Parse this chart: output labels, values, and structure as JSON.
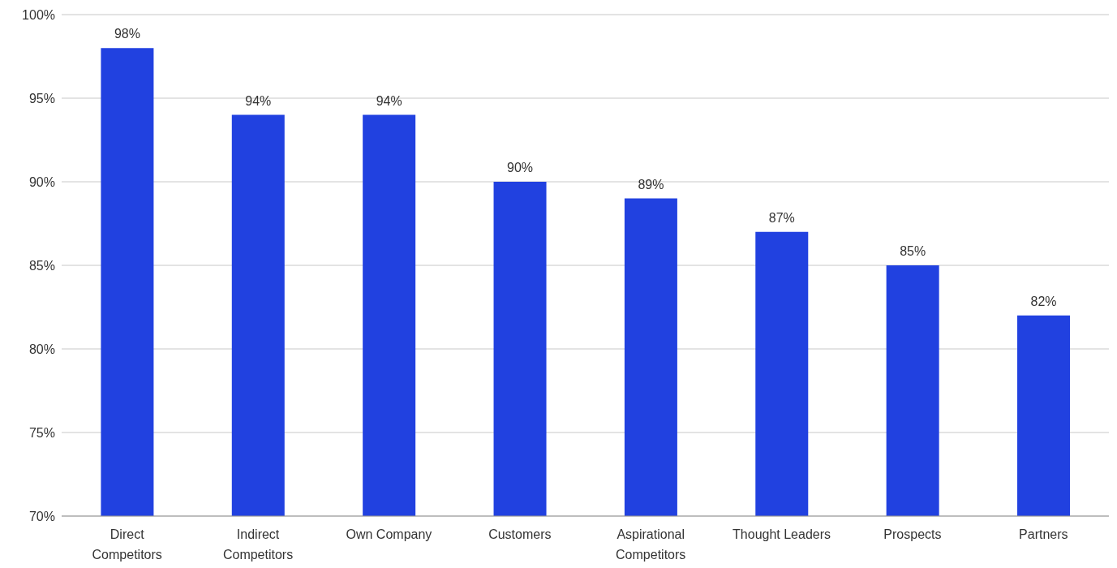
{
  "chart_data": {
    "type": "bar",
    "categories": [
      "Direct Competitors",
      "Indirect Competitors",
      "Own Company",
      "Customers",
      "Aspirational Competitors",
      "Thought Leaders",
      "Prospects",
      "Partners"
    ],
    "values": [
      98,
      94,
      94,
      90,
      89,
      87,
      85,
      82
    ],
    "value_labels": [
      "98%",
      "94%",
      "94%",
      "90%",
      "89%",
      "87%",
      "85%",
      "82%"
    ],
    "color": "#2141e0",
    "ylim": [
      70,
      100
    ],
    "yticks": [
      {
        "value": 70,
        "label": "70%"
      },
      {
        "value": 75,
        "label": "75%"
      },
      {
        "value": 80,
        "label": "80%"
      },
      {
        "value": 85,
        "label": "85%"
      },
      {
        "value": 90,
        "label": "90%"
      },
      {
        "value": 95,
        "label": "95%"
      },
      {
        "value": 100,
        "label": "100%"
      }
    ],
    "grid": "y",
    "legend": false
  }
}
